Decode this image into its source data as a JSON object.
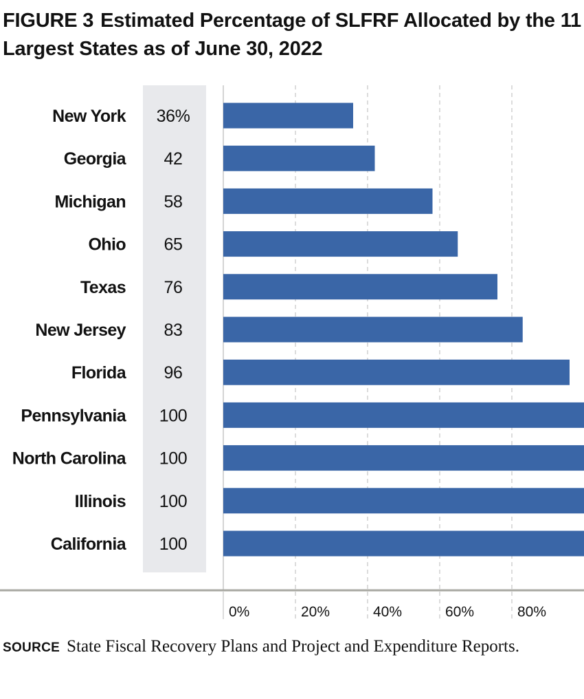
{
  "title": {
    "figure_label": "FIGURE 3",
    "text": "Estimated Percentage of SLFRF Allocated by the 11 Largest States as of June 30, 2022"
  },
  "colors": {
    "bar": "#3a66a7",
    "value_band": "#e8e9ec",
    "grid": "#b8b8b8",
    "axis": "#a8a8a2",
    "text": "#111111"
  },
  "chart_data": {
    "type": "bar",
    "orientation": "horizontal",
    "categories": [
      "New York",
      "Georgia",
      "Michigan",
      "Ohio",
      "Texas",
      "New Jersey",
      "Florida",
      "Pennsylvania",
      "North Carolina",
      "Illinois",
      "California"
    ],
    "values": [
      36,
      42,
      58,
      65,
      76,
      83,
      96,
      100,
      100,
      100,
      100
    ],
    "value_labels": [
      "36%",
      "42",
      "58",
      "65",
      "76",
      "83",
      "96",
      "100",
      "100",
      "100",
      "100"
    ],
    "x_ticks": [
      0,
      20,
      40,
      60,
      80
    ],
    "x_tick_labels": [
      "0%",
      "20%",
      "40%",
      "60%",
      "80%"
    ],
    "xlim": [
      0,
      100
    ],
    "grid": true,
    "xlabel": "",
    "ylabel": ""
  },
  "source": {
    "label": "SOURCE",
    "text": "State Fiscal Recovery Plans and Project and Expenditure Reports."
  }
}
